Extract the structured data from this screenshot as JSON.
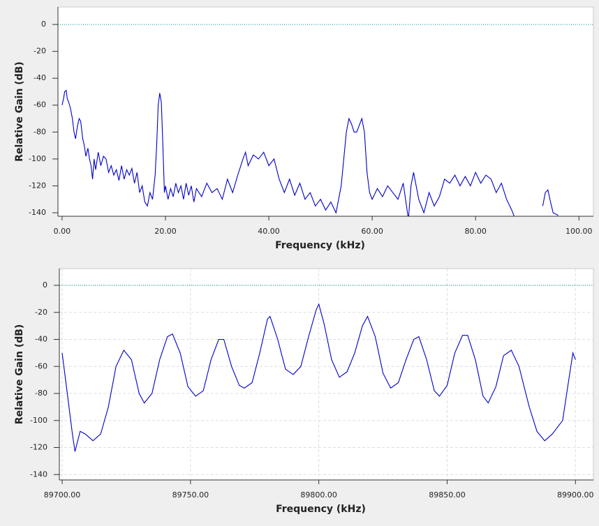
{
  "chart_data": [
    {
      "type": "line",
      "xlabel": "Frequency (kHz)",
      "ylabel": "Relative Gain (dB)",
      "x": [
        0,
        0.3,
        0.5,
        0.8,
        1,
        1.3,
        1.6,
        2,
        2.3,
        2.6,
        3,
        3.3,
        3.6,
        4,
        4.3,
        4.6,
        5,
        5.3,
        5.6,
        5.9,
        6.2,
        6.5,
        7,
        7.5,
        8,
        8.5,
        9,
        9.5,
        10,
        10.5,
        11,
        11.5,
        12,
        12.5,
        13,
        13.5,
        14,
        14.5,
        15,
        15.5,
        16,
        16.5,
        17,
        17.5,
        18,
        18.3,
        18.6,
        18.9,
        19.2,
        19.5,
        19.8,
        20,
        20.5,
        21,
        21.5,
        22,
        22.5,
        23,
        23.5,
        24,
        24.5,
        25,
        25.5,
        26,
        27,
        28,
        29,
        30,
        31,
        32,
        33,
        34,
        35,
        35.5,
        36,
        37,
        38,
        39,
        40,
        41,
        42,
        43,
        44,
        45,
        46,
        47,
        48,
        49,
        50,
        51,
        52,
        53,
        54,
        54.5,
        55,
        55.5,
        56,
        56.5,
        57,
        57.5,
        58,
        58.5,
        59,
        59.5,
        60,
        61,
        62,
        63,
        64,
        65,
        66,
        67,
        67.5,
        68,
        69,
        70,
        71,
        72,
        73,
        74,
        75,
        76,
        77,
        78,
        79,
        80,
        81,
        82,
        83,
        84,
        85,
        86,
        87,
        88,
        90,
        93,
        93.5,
        94,
        94.5,
        95,
        96
      ],
      "series": [
        {
          "color": "#0000c8",
          "values": [
            -60,
            -55,
            -50,
            -49,
            -55,
            -58,
            -62,
            -70,
            -80,
            -85,
            -75,
            -70,
            -72,
            -85,
            -90,
            -98,
            -92,
            -100,
            -105,
            -115,
            -100,
            -108,
            -95,
            -105,
            -98,
            -100,
            -110,
            -105,
            -112,
            -108,
            -116,
            -105,
            -115,
            -108,
            -112,
            -107,
            -118,
            -110,
            -125,
            -120,
            -132,
            -135,
            -125,
            -130,
            -112,
            -90,
            -60,
            -51,
            -58,
            -90,
            -125,
            -120,
            -130,
            -122,
            -128,
            -118,
            -125,
            -120,
            -130,
            -118,
            -127,
            -120,
            -132,
            -122,
            -128,
            -118,
            -125,
            -122,
            -130,
            -115,
            -125,
            -112,
            -100,
            -95,
            -105,
            -97,
            -100,
            -95,
            -105,
            -100,
            -115,
            -125,
            -115,
            -127,
            -118,
            -130,
            -125,
            -135,
            -130,
            -138,
            -132,
            -140,
            -120,
            -100,
            -80,
            -70,
            -74,
            -80,
            -80,
            -75,
            -70,
            -80,
            -110,
            -125,
            -130,
            -122,
            -128,
            -120,
            -125,
            -130,
            -118,
            -145,
            -120,
            -110,
            -130,
            -140,
            -125,
            -135,
            -128,
            -115,
            -118,
            -112,
            -120,
            -113,
            -120,
            -110,
            -118,
            -112,
            -115,
            -125,
            -118,
            -130,
            -138,
            -148,
            null,
            -135,
            -125,
            -123,
            -132,
            -140,
            -142
          ]
        }
      ],
      "xlim": [
        -0.8,
        102.8
      ],
      "ylim": [
        -142.6,
        13
      ],
      "xticks": [
        {
          "value": 0,
          "label": "0.00"
        },
        {
          "value": 20,
          "label": "20.00"
        },
        {
          "value": 40,
          "label": "40.00"
        },
        {
          "value": 60,
          "label": "60.00"
        },
        {
          "value": 80,
          "label": "80.00"
        },
        {
          "value": 100,
          "label": "100.00"
        }
      ],
      "yticks": [
        0,
        -20,
        -40,
        -60,
        -80,
        -100,
        -120,
        -140
      ],
      "hline": {
        "value": 0,
        "color": "#00868b"
      },
      "grid": false
    },
    {
      "type": "line",
      "xlabel": "Frequency (kHz)",
      "ylabel": "Relative Gain (dB)",
      "x": [
        89700,
        89702,
        89704,
        89705,
        89707,
        89709,
        89712,
        89715,
        89718,
        89721,
        89724,
        89727,
        89730,
        89732,
        89735,
        89738,
        89741,
        89743,
        89746,
        89749,
        89752,
        89755,
        89758,
        89761,
        89763,
        89766,
        89769,
        89771,
        89774,
        89777,
        89780,
        89781,
        89784,
        89787,
        89790,
        89793,
        89796,
        89799,
        89800,
        89802,
        89805,
        89808,
        89811,
        89814,
        89817,
        89819,
        89822,
        89825,
        89828,
        89831,
        89834,
        89837,
        89839,
        89842,
        89845,
        89847,
        89850,
        89853,
        89856,
        89858,
        89861,
        89864,
        89866,
        89869,
        89872,
        89875,
        89878,
        89882,
        89885,
        89888,
        89891,
        89893,
        89895,
        89897,
        89899,
        89900
      ],
      "series": [
        {
          "color": "#0000c8",
          "values": [
            -50,
            -80,
            -110,
            -123,
            -108,
            -110,
            -115,
            -110,
            -90,
            -60,
            -48,
            -55,
            -80,
            -87,
            -80,
            -55,
            -38,
            -36,
            -50,
            -75,
            -82,
            -78,
            -55,
            -40,
            -40,
            -60,
            -74,
            -76,
            -72,
            -50,
            -25,
            -23,
            -40,
            -62,
            -66,
            -60,
            -38,
            -18,
            -14,
            -28,
            -55,
            -68,
            -64,
            -50,
            -30,
            -23,
            -38,
            -65,
            -76,
            -72,
            -55,
            -40,
            -38,
            -55,
            -78,
            -82,
            -74,
            -50,
            -37,
            -37,
            -55,
            -82,
            -87,
            -75,
            -52,
            -48,
            -60,
            -90,
            -108,
            -115,
            -110,
            -105,
            -100,
            -75,
            -50,
            -55
          ]
        }
      ],
      "xlim": [
        89698.9,
        89907
      ],
      "ylim": [
        -144,
        12.4
      ],
      "xticks": [
        {
          "value": 89700,
          "label": "89700.00"
        },
        {
          "value": 89750,
          "label": "89750.00"
        },
        {
          "value": 89800,
          "label": "89800.00"
        },
        {
          "value": 89850,
          "label": "89850.00"
        },
        {
          "value": 89900,
          "label": "89900.00"
        }
      ],
      "yticks": [
        0,
        -20,
        -40,
        -60,
        -80,
        -100,
        -120,
        -140
      ],
      "hline": {
        "value": 0,
        "color": "#00868b"
      },
      "grid": true
    }
  ]
}
